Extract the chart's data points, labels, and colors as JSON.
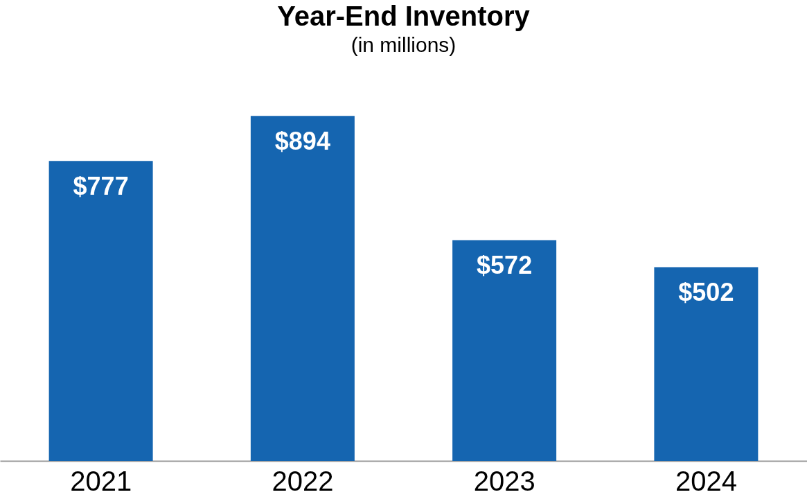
{
  "chart_data": {
    "type": "bar",
    "title": "Year-End Inventory",
    "subtitle": "(in millions)",
    "categories": [
      "2021",
      "2022",
      "2023",
      "2024"
    ],
    "values": [
      777,
      894,
      572,
      502
    ],
    "value_labels": [
      "$777",
      "$894",
      "$572",
      "$502"
    ],
    "color": "#1565b0"
  }
}
